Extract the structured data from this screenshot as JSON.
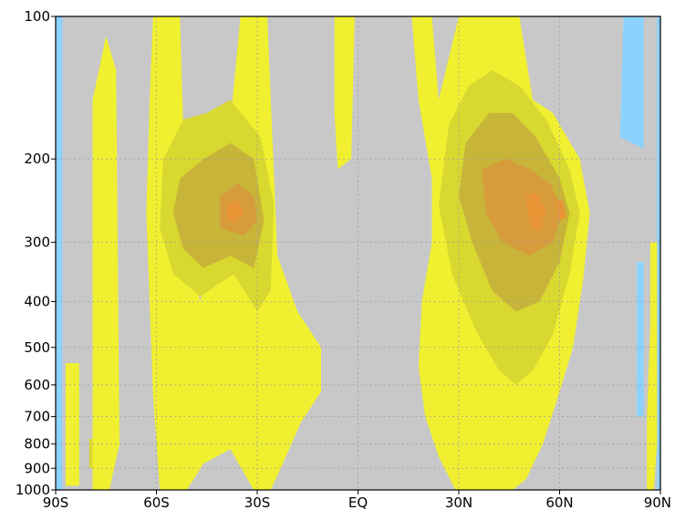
{
  "chart_data": {
    "type": "heatmap",
    "title": "",
    "xlabel": "",
    "ylabel": "",
    "xlim": [
      -90,
      90
    ],
    "ylim": [
      1000,
      100
    ],
    "yscale": "log-pressure",
    "grid": true,
    "x_ticks": [
      {
        "value": -90,
        "label": "90S"
      },
      {
        "value": -60,
        "label": "60S"
      },
      {
        "value": -30,
        "label": "30S"
      },
      {
        "value": 0,
        "label": "EQ"
      },
      {
        "value": 30,
        "label": "30N"
      },
      {
        "value": 60,
        "label": "60N"
      },
      {
        "value": 90,
        "label": "90N"
      }
    ],
    "y_ticks": [
      {
        "value": 100,
        "label": "100"
      },
      {
        "value": 200,
        "label": "200"
      },
      {
        "value": 300,
        "label": "300"
      },
      {
        "value": 400,
        "label": "400"
      },
      {
        "value": 500,
        "label": "500"
      },
      {
        "value": 600,
        "label": "600"
      },
      {
        "value": 700,
        "label": "700"
      },
      {
        "value": 800,
        "label": "800"
      },
      {
        "value": 900,
        "label": "900"
      },
      {
        "value": 1000,
        "label": "1000"
      }
    ],
    "colors": {
      "background": "#c8c8c8",
      "level1": "#f0f030",
      "level2": "#d8d830",
      "level3": "#c8b438",
      "level4": "#d69c3c",
      "level5": "#e89434",
      "negative": "#8cd2ff",
      "grid": "#a0a0a0"
    },
    "regions": [
      {
        "level": "negative",
        "polygon": [
          [
            -90,
            100
          ],
          [
            -88,
            100
          ],
          [
            -88,
            1000
          ],
          [
            -90,
            1000
          ]
        ]
      },
      {
        "level": "negative",
        "polygon": [
          [
            79,
            100
          ],
          [
            85,
            100
          ],
          [
            85,
            190
          ],
          [
            78,
            180
          ]
        ]
      },
      {
        "level": "negative",
        "polygon": [
          [
            83,
            330
          ],
          [
            85,
            330
          ],
          [
            85,
            700
          ],
          [
            83,
            700
          ]
        ]
      },
      {
        "level": "negative",
        "polygon": [
          [
            89,
            100
          ],
          [
            90,
            100
          ],
          [
            90,
            1000
          ],
          [
            89,
            1000
          ]
        ]
      },
      {
        "level": "level1",
        "polygon": [
          [
            -87,
            540
          ],
          [
            -83,
            540
          ],
          [
            -83,
            980
          ],
          [
            -87,
            980
          ]
        ]
      },
      {
        "level": "level1",
        "polygon": [
          [
            -79,
            150
          ],
          [
            -75,
            110
          ],
          [
            -72,
            130
          ],
          [
            -71,
            800
          ],
          [
            -74,
            1000
          ],
          [
            -79,
            1000
          ]
        ]
      },
      {
        "level": "level1",
        "polygon": [
          [
            -61,
            100
          ],
          [
            -53,
            100
          ],
          [
            -51,
            300
          ],
          [
            -47,
            400
          ],
          [
            -43,
            300
          ],
          [
            -39,
            200
          ],
          [
            -35,
            100
          ],
          [
            -27,
            100
          ],
          [
            -24,
            320
          ],
          [
            -18,
            420
          ],
          [
            -11,
            500
          ],
          [
            -11,
            620
          ],
          [
            -17,
            720
          ],
          [
            -23,
            900
          ],
          [
            -26,
            1000
          ],
          [
            -31,
            1000
          ],
          [
            -38,
            820
          ],
          [
            -46,
            880
          ],
          [
            -51,
            1000
          ],
          [
            -59,
            1000
          ],
          [
            -61,
            630
          ],
          [
            -63,
            260
          ],
          [
            -62,
            150
          ]
        ]
      },
      {
        "level": "level1",
        "polygon": [
          [
            -7,
            100
          ],
          [
            -1,
            100
          ],
          [
            -2,
            200
          ],
          [
            -6,
            210
          ],
          [
            -7,
            160
          ]
        ]
      },
      {
        "level": "level1",
        "polygon": [
          [
            16,
            100
          ],
          [
            22,
            100
          ],
          [
            24,
            150
          ],
          [
            30,
            100
          ],
          [
            48,
            100
          ],
          [
            52,
            150
          ],
          [
            58,
            160
          ],
          [
            66,
            200
          ],
          [
            69,
            260
          ],
          [
            67,
            360
          ],
          [
            64,
            500
          ],
          [
            60,
            620
          ],
          [
            55,
            800
          ],
          [
            50,
            950
          ],
          [
            46,
            1000
          ],
          [
            29,
            1000
          ],
          [
            24,
            850
          ],
          [
            20,
            700
          ],
          [
            18,
            550
          ],
          [
            19,
            400
          ],
          [
            22,
            300
          ],
          [
            22,
            220
          ],
          [
            18,
            150
          ]
        ]
      },
      {
        "level": "level1",
        "polygon": [
          [
            87,
            300
          ],
          [
            89,
            300
          ],
          [
            89,
            800
          ],
          [
            88,
            1000
          ],
          [
            86,
            1000
          ],
          [
            86,
            700
          ],
          [
            87,
            450
          ]
        ]
      },
      {
        "level": "level2",
        "polygon": [
          [
            -58,
            200
          ],
          [
            -52,
            165
          ],
          [
            -45,
            160
          ],
          [
            -38,
            150
          ],
          [
            -29,
            180
          ],
          [
            -25,
            250
          ],
          [
            -26,
            380
          ],
          [
            -30,
            420
          ],
          [
            -37,
            350
          ],
          [
            -47,
            390
          ],
          [
            -55,
            350
          ],
          [
            -59,
            280
          ]
        ]
      },
      {
        "level": "level2",
        "polygon": [
          [
            27,
            170
          ],
          [
            33,
            140
          ],
          [
            40,
            130
          ],
          [
            48,
            140
          ],
          [
            56,
            165
          ],
          [
            63,
            210
          ],
          [
            66,
            260
          ],
          [
            63,
            350
          ],
          [
            58,
            470
          ],
          [
            52,
            560
          ],
          [
            47,
            600
          ],
          [
            42,
            560
          ],
          [
            35,
            460
          ],
          [
            28,
            350
          ],
          [
            24,
            250
          ]
        ]
      },
      {
        "level": "level2",
        "polygon": [
          [
            -80,
            780
          ],
          [
            -79,
            780
          ],
          [
            -79,
            900
          ],
          [
            -80,
            900
          ]
        ]
      },
      {
        "level": "level3",
        "polygon": [
          [
            -53,
            220
          ],
          [
            -46,
            200
          ],
          [
            -38,
            185
          ],
          [
            -31,
            200
          ],
          [
            -28,
            270
          ],
          [
            -31,
            340
          ],
          [
            -38,
            320
          ],
          [
            -46,
            340
          ],
          [
            -52,
            310
          ],
          [
            -55,
            260
          ]
        ]
      },
      {
        "level": "level3",
        "polygon": [
          [
            32,
            185
          ],
          [
            39,
            160
          ],
          [
            46,
            160
          ],
          [
            53,
            180
          ],
          [
            60,
            220
          ],
          [
            63,
            260
          ],
          [
            60,
            330
          ],
          [
            54,
            400
          ],
          [
            47,
            420
          ],
          [
            40,
            380
          ],
          [
            34,
            300
          ],
          [
            30,
            240
          ]
        ]
      },
      {
        "level": "level4",
        "polygon": [
          [
            -41,
            240
          ],
          [
            -36,
            225
          ],
          [
            -31,
            240
          ],
          [
            -30,
            270
          ],
          [
            -34,
            290
          ],
          [
            -41,
            280
          ]
        ]
      },
      {
        "level": "level4",
        "polygon": [
          [
            37,
            210
          ],
          [
            44,
            200
          ],
          [
            51,
            210
          ],
          [
            57,
            225
          ],
          [
            61,
            255
          ],
          [
            58,
            300
          ],
          [
            51,
            320
          ],
          [
            43,
            300
          ],
          [
            38,
            260
          ]
        ]
      },
      {
        "level": "level5",
        "polygon": [
          [
            -39,
            250
          ],
          [
            -36,
            245
          ],
          [
            -34,
            260
          ],
          [
            -37,
            275
          ],
          [
            -39,
            265
          ]
        ]
      },
      {
        "level": "level5",
        "polygon": [
          [
            50,
            240
          ],
          [
            53,
            235
          ],
          [
            56,
            255
          ],
          [
            54,
            285
          ],
          [
            51,
            275
          ]
        ]
      },
      {
        "level": "level5",
        "polygon": [
          [
            59,
            245
          ],
          [
            61,
            245
          ],
          [
            62,
            265
          ],
          [
            60,
            270
          ],
          [
            59,
            258
          ]
        ]
      }
    ]
  }
}
